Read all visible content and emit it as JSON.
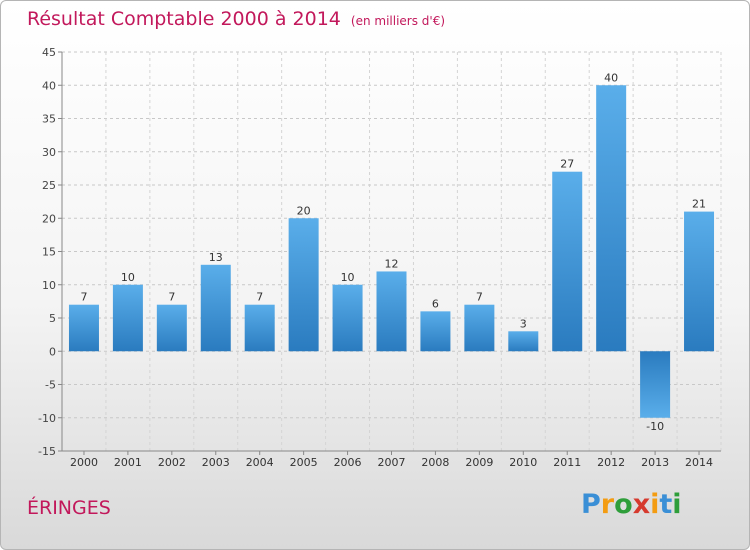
{
  "header": {
    "title": "Résultat Comptable 2000 à 2014",
    "subtitle": "(en milliers d'€)"
  },
  "commune": "ÉRINGES",
  "logo": {
    "letters": [
      "P",
      "r",
      "o",
      "x",
      "i",
      "t",
      "i"
    ],
    "colors": [
      "#3a8fd6",
      "#f39c12",
      "#2e9e3a",
      "#d63a2e",
      "#f39c12",
      "#3a8fd6",
      "#2e9e3a"
    ]
  },
  "colors": {
    "bar_top": "#5aaeea",
    "bar_bottom": "#2a7bbf",
    "accent": "#c2185b"
  },
  "chart_data": {
    "type": "bar",
    "title": "Résultat Comptable 2000 à 2014",
    "subtitle": "(en milliers d'€)",
    "xlabel": "",
    "ylabel": "",
    "categories": [
      "2000",
      "2001",
      "2002",
      "2003",
      "2004",
      "2005",
      "2006",
      "2007",
      "2008",
      "2009",
      "2010",
      "2011",
      "2012",
      "2013",
      "2014"
    ],
    "values": [
      7,
      10,
      7,
      13,
      7,
      20,
      10,
      12,
      6,
      7,
      3,
      27,
      40,
      -10,
      21
    ],
    "data_labels": [
      "7",
      "10",
      "7",
      "13",
      "7",
      "20",
      "10",
      "12",
      "6",
      "7",
      "3",
      "27",
      "40",
      "-10",
      "21"
    ],
    "ylim": [
      -15,
      45
    ],
    "yticks": [
      -15,
      -10,
      -5,
      0,
      5,
      10,
      15,
      20,
      25,
      30,
      35,
      40,
      45
    ],
    "ytick_labels": [
      "-15",
      "-10",
      "-5",
      "0",
      "5",
      "10",
      "15",
      "20",
      "25",
      "30",
      "35",
      "40",
      "45"
    ],
    "grid": true
  }
}
